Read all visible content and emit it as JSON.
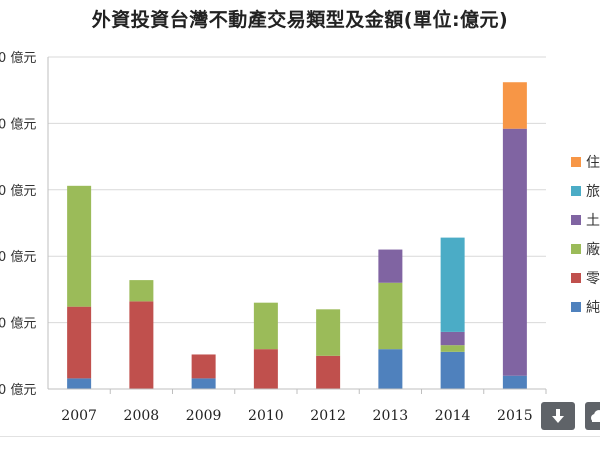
{
  "chart_data": {
    "type": "bar",
    "stacked": true,
    "title": "外資投資台灣不動產交易類型及金額(單位:億元)",
    "unit_suffix": "億元",
    "ytick_labels": [
      "0 億元",
      "0 億元",
      "0 億元",
      "0 億元",
      "0 億元",
      "0 億元"
    ],
    "ylim": [
      0,
      250
    ],
    "categories": [
      "2007",
      "2008",
      "2009",
      "2010",
      "2012",
      "2013",
      "2014",
      "2015"
    ],
    "series": [
      {
        "name": "純",
        "color": "#4f81bd",
        "values": [
          8,
          0,
          8,
          0,
          0,
          30,
          28,
          10
        ]
      },
      {
        "name": "零",
        "color": "#c0504d",
        "values": [
          54,
          66,
          18,
          30,
          25,
          0,
          0,
          0
        ]
      },
      {
        "name": "廠",
        "color": "#9bbb59",
        "values": [
          91,
          16,
          0,
          35,
          35,
          50,
          5,
          0
        ]
      },
      {
        "name": "土",
        "color": "#8064a2",
        "values": [
          0,
          0,
          0,
          0,
          0,
          25,
          10,
          186
        ]
      },
      {
        "name": "旅",
        "color": "#4bacc6",
        "values": [
          0,
          0,
          0,
          0,
          0,
          0,
          71,
          0
        ]
      },
      {
        "name": "住",
        "color": "#f79646",
        "values": [
          0,
          0,
          0,
          0,
          0,
          0,
          0,
          35
        ]
      }
    ],
    "legend_order": [
      "住",
      "旅",
      "土",
      "廠",
      "零",
      "純"
    ],
    "legend_position": "right",
    "grid": true
  },
  "toolbar": {
    "download_icon": "download-icon",
    "second_icon": "cloud-icon"
  }
}
